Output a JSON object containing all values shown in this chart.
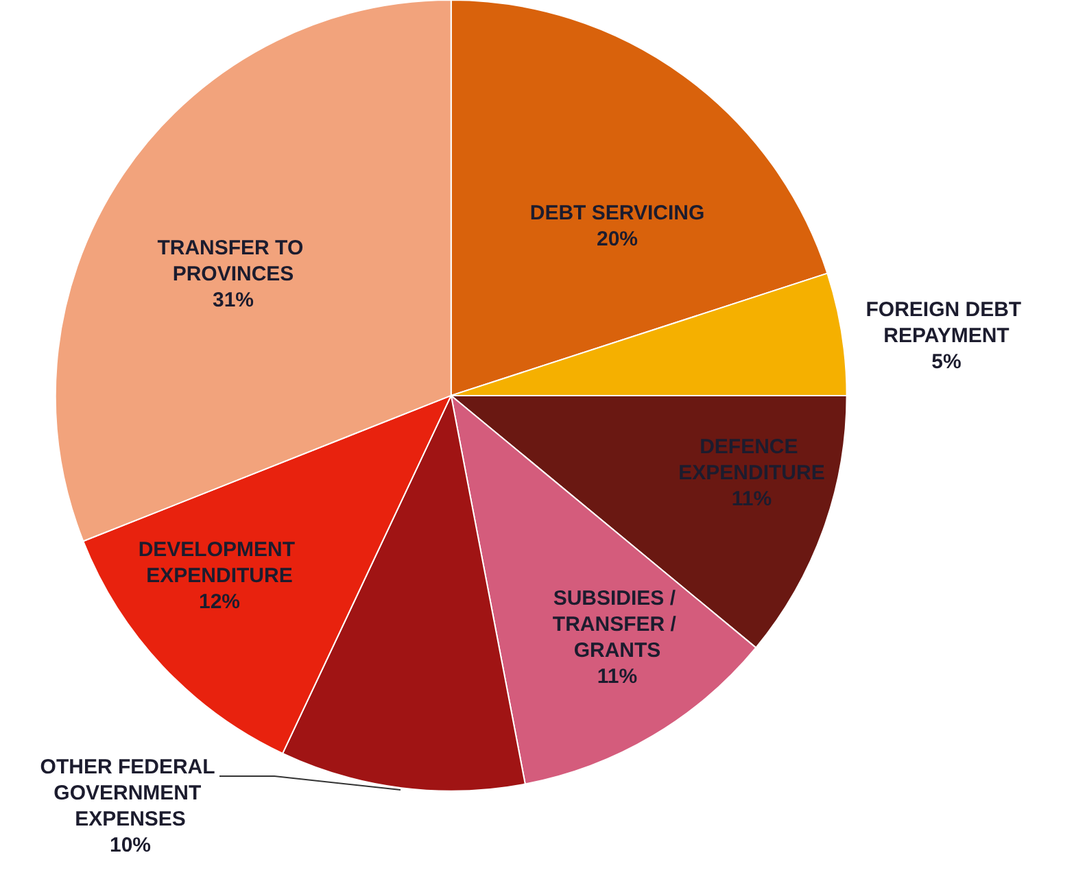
{
  "chart_data": {
    "type": "pie",
    "categories": [
      "DEBT SERVICING",
      "FOREIGN DEBT REPAYMENT",
      "DEFENCE EXPENDITURE",
      "SUBSIDIES / TRANSFER / GRANTS",
      "OTHER FEDERAL GOVERNMENT EXPENSES",
      "DEVELOPMENT EXPENDITURE",
      "TRANSFER TO PROVINCES"
    ],
    "values": [
      20,
      5,
      11,
      11,
      10,
      12,
      31
    ],
    "value_labels": [
      "20%",
      "5%",
      "11%",
      "11%",
      "10%",
      "12%",
      "31%"
    ],
    "colors": [
      "#d9620c",
      "#f5b000",
      "#6a1812",
      "#d45c7c",
      "#a01414",
      "#e8220e",
      "#f2a37c"
    ]
  }
}
